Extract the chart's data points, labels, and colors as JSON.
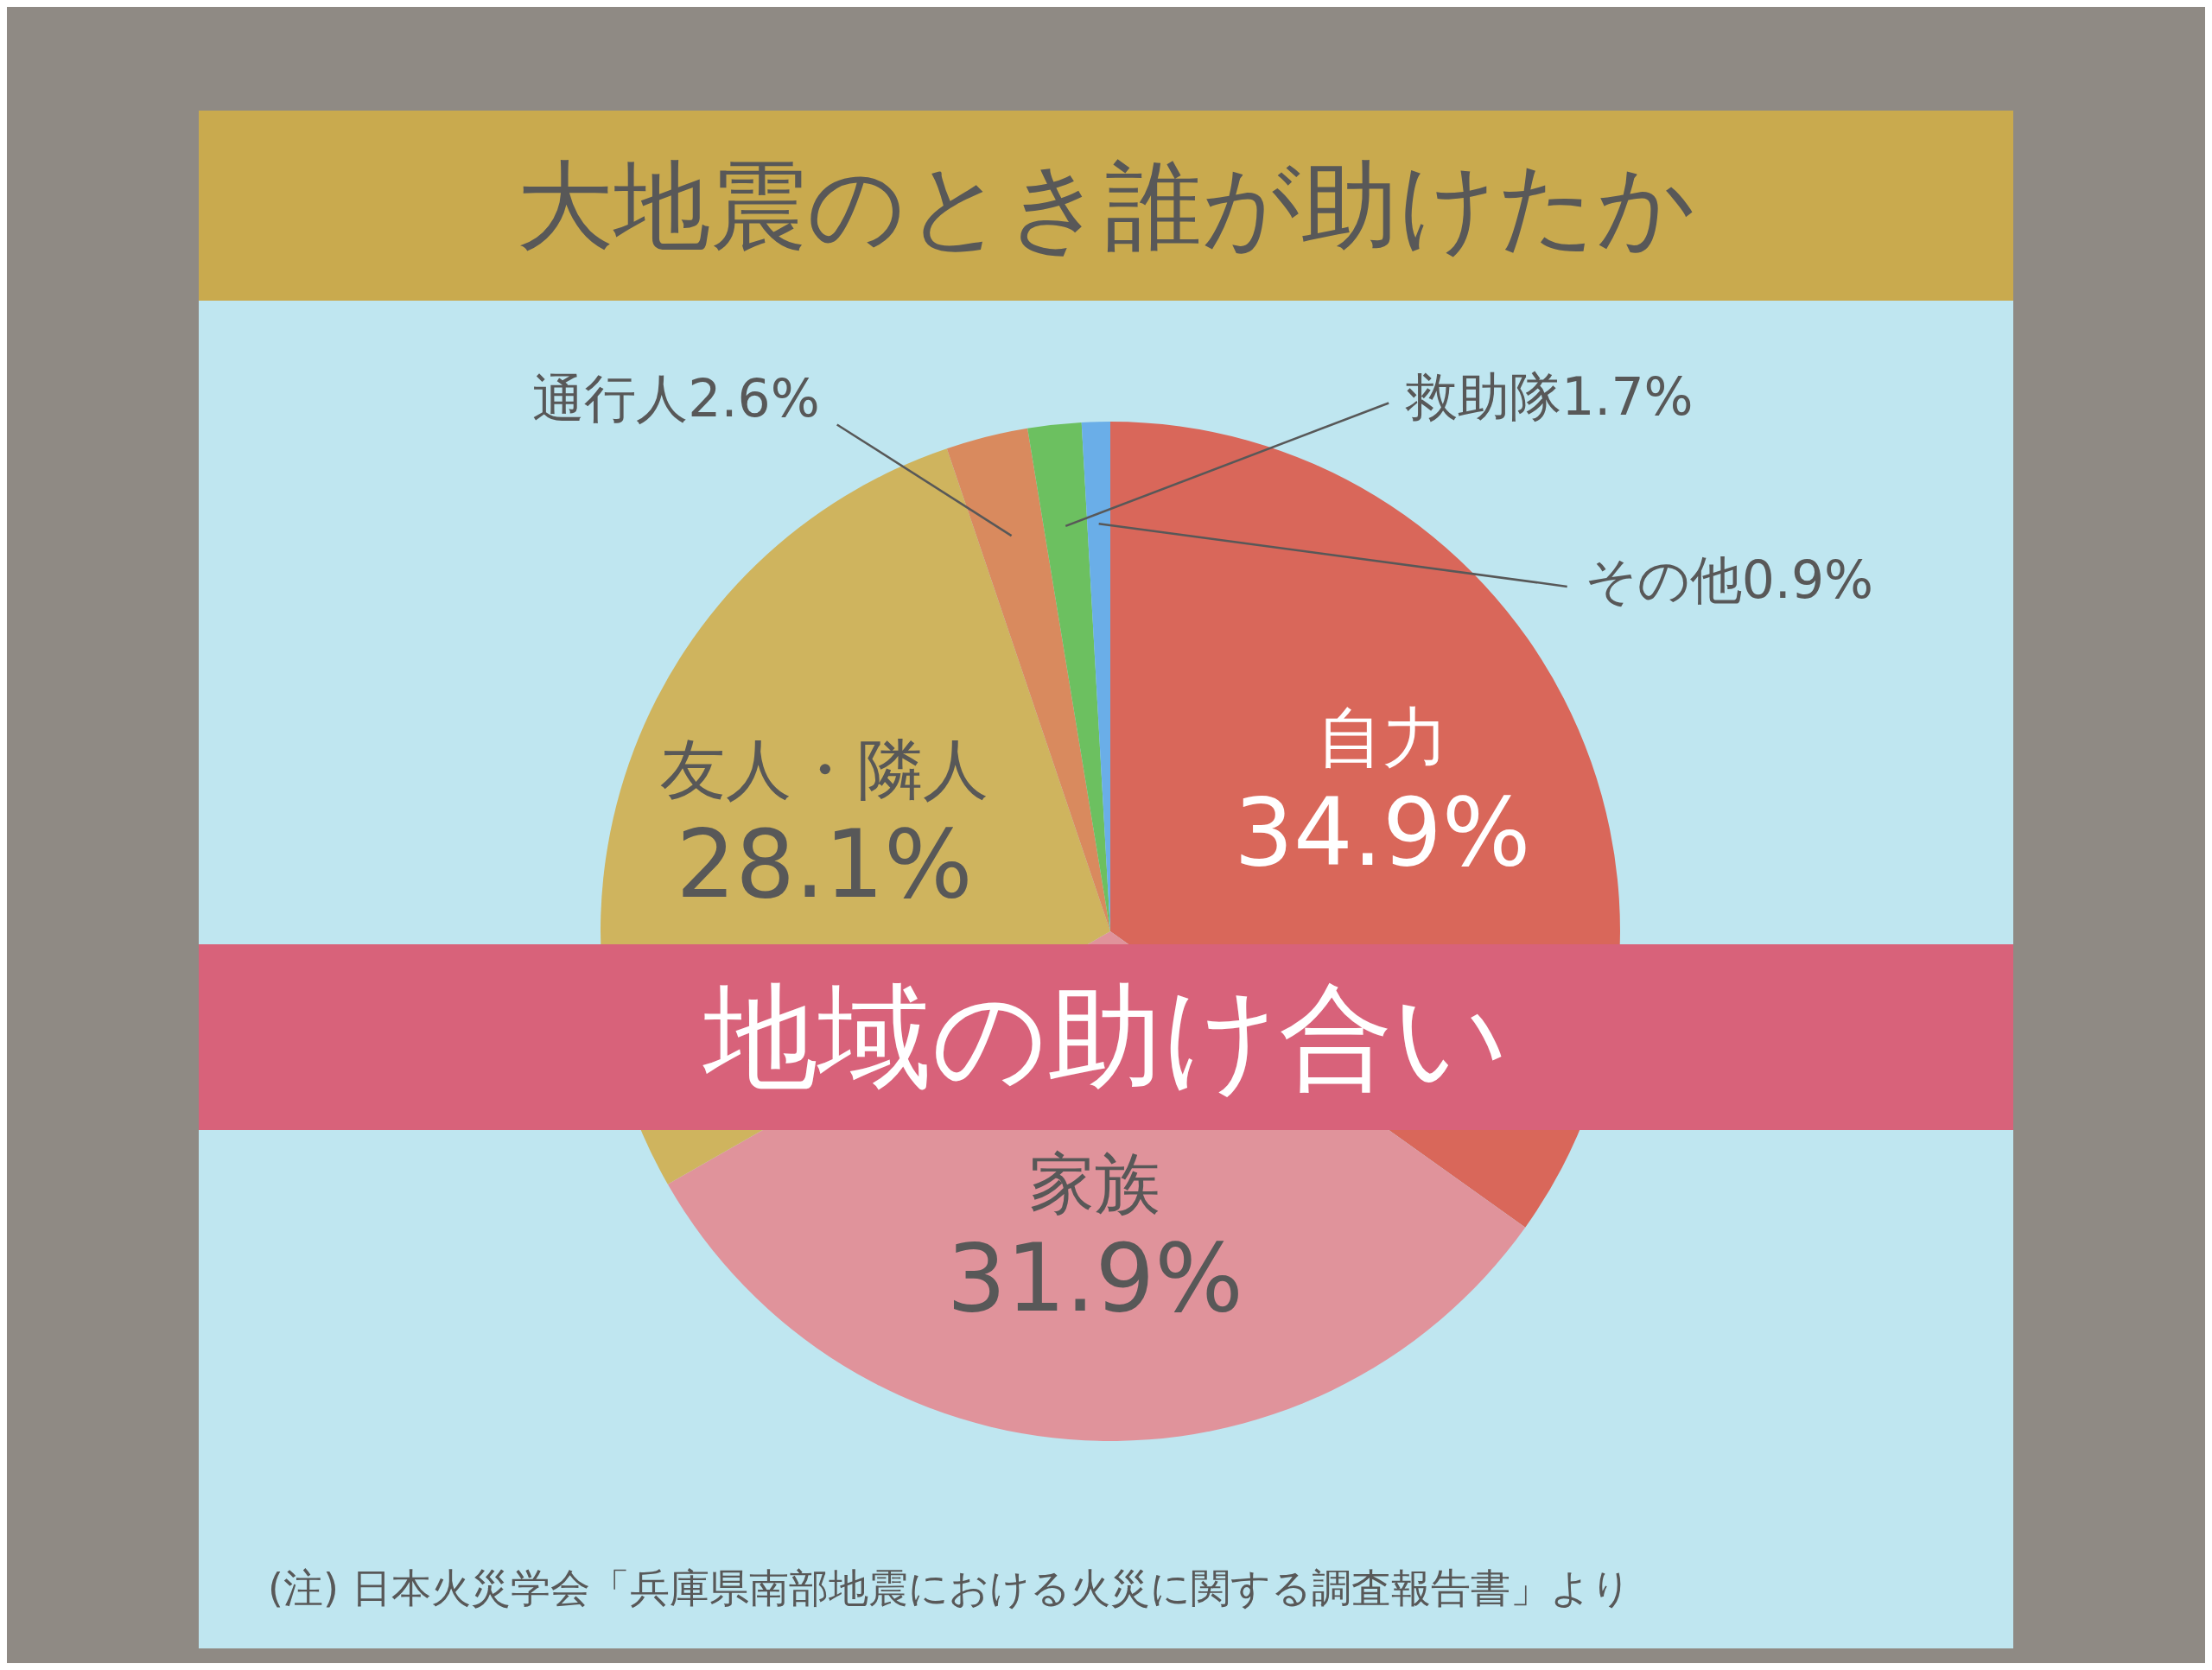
{
  "chart_data": {
    "type": "pie",
    "title": "大地震のとき誰が助けたか",
    "categories": [
      "自力",
      "家族",
      "友人・隣人",
      "通行人",
      "救助隊",
      "その他"
    ],
    "values": [
      34.9,
      31.9,
      28.1,
      2.6,
      1.7,
      0.9
    ],
    "value_labels": [
      "34.9%",
      "31.9%",
      "28.1%",
      "2.6%",
      "1.7%",
      "0.9%"
    ],
    "colors": [
      "#d9675a",
      "#e0939b",
      "#cfb45e",
      "#d98a5e",
      "#6cc060",
      "#6aaee8"
    ],
    "annotations": [
      "地域の助け合い",
      "(注) 日本火災学会「兵庫県南部地震における火災に関する調査報告書」より"
    ]
  }
}
